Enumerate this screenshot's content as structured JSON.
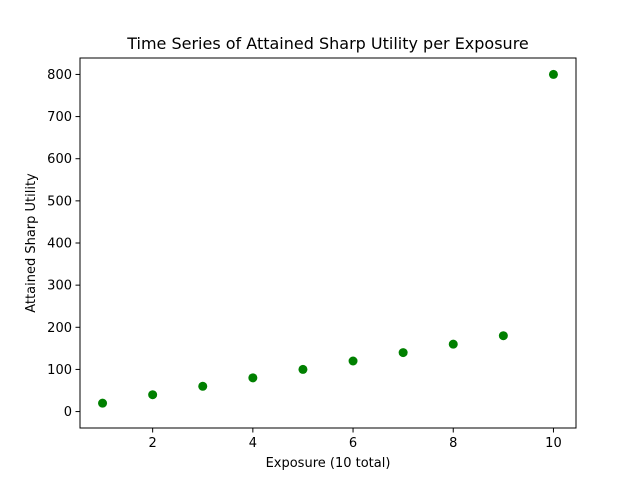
{
  "chart_data": {
    "type": "scatter",
    "title": "Time Series of Attained Sharp Utility per Exposure",
    "xlabel": "Exposure (10 total)",
    "ylabel": "Attained Sharp Utility",
    "x": [
      1,
      2,
      3,
      4,
      5,
      6,
      7,
      8,
      9,
      10
    ],
    "series": [
      {
        "values": [
          20,
          40,
          60,
          80,
          100,
          120,
          140,
          160,
          180,
          800
        ],
        "color": "#008000"
      }
    ],
    "xlim": [
      0.55,
      10.45
    ],
    "ylim": [
      -39,
      839
    ],
    "xticks": [
      2,
      4,
      6,
      8,
      10
    ],
    "yticks": [
      0,
      100,
      200,
      300,
      400,
      500,
      600,
      700,
      800
    ],
    "grid": false,
    "legend": "none"
  }
}
